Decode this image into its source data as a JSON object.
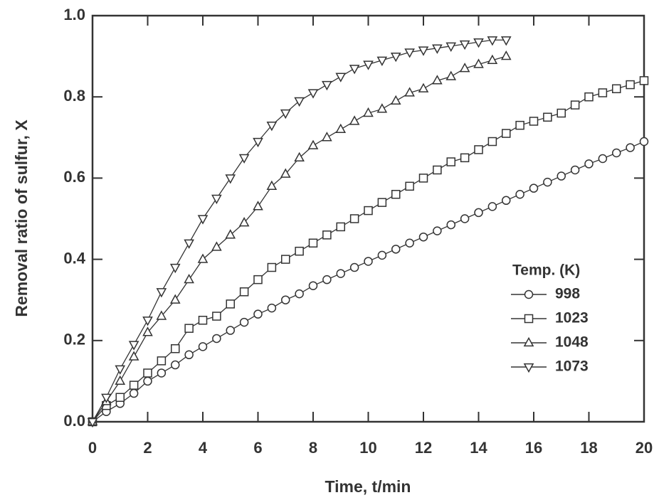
{
  "chart_data": {
    "type": "line",
    "xlabel": "Time, t/min",
    "ylabel": "Removal ratio of sulfur, X",
    "legend_title": "Temp. (K)",
    "legend_position": "lower right",
    "xlim": [
      0,
      20
    ],
    "xticks": [
      0,
      2,
      4,
      6,
      8,
      10,
      12,
      14,
      16,
      18,
      20
    ],
    "ylim": [
      0,
      1
    ],
    "yticks": [
      {
        "value": 0,
        "label": "0.0"
      },
      0.2,
      0.4,
      0.6,
      0.8,
      {
        "value": 1,
        "label": "1.0"
      }
    ],
    "x": [
      0,
      0.5,
      1,
      1.5,
      2,
      2.5,
      3,
      3.5,
      4,
      4.5,
      5,
      5.5,
      6,
      6.5,
      7,
      7.5,
      8,
      8.5,
      9,
      9.5,
      10,
      10.5,
      11,
      11.5,
      12,
      12.5,
      13,
      13.5,
      14,
      14.5,
      15,
      15.5,
      16,
      16.5,
      17,
      17.5,
      18,
      18.5,
      19,
      19.5,
      20
    ],
    "series": [
      {
        "name": "998",
        "color": "#333333",
        "marker": "circle",
        "values": [
          0,
          0.025,
          0.045,
          0.07,
          0.1,
          0.12,
          0.14,
          0.165,
          0.185,
          0.205,
          0.225,
          0.245,
          0.265,
          0.28,
          0.3,
          0.315,
          0.335,
          0.35,
          0.365,
          0.38,
          0.395,
          0.41,
          0.425,
          0.44,
          0.455,
          0.47,
          0.485,
          0.5,
          0.515,
          0.53,
          0.545,
          0.56,
          0.575,
          0.59,
          0.605,
          0.62,
          0.635,
          0.648,
          0.662,
          0.675,
          0.69
        ]
      },
      {
        "name": "1023",
        "color": "#333333",
        "marker": "square",
        "values": [
          0,
          0.04,
          0.06,
          0.09,
          0.12,
          0.15,
          0.18,
          0.23,
          0.25,
          0.26,
          0.29,
          0.32,
          0.35,
          0.38,
          0.4,
          0.42,
          0.44,
          0.46,
          0.48,
          0.5,
          0.52,
          0.54,
          0.56,
          0.58,
          0.6,
          0.62,
          0.64,
          0.65,
          0.67,
          0.69,
          0.71,
          0.73,
          0.74,
          0.75,
          0.76,
          0.78,
          0.8,
          0.81,
          0.82,
          0.83,
          0.84
        ]
      },
      {
        "name": "1048",
        "color": "#333333",
        "marker": "triangle-up",
        "values": [
          0,
          0.05,
          0.1,
          0.16,
          0.22,
          0.26,
          0.3,
          0.35,
          0.4,
          0.43,
          0.46,
          0.49,
          0.53,
          0.58,
          0.61,
          0.65,
          0.68,
          0.7,
          0.72,
          0.74,
          0.76,
          0.77,
          0.79,
          0.81,
          0.82,
          0.84,
          0.85,
          0.87,
          0.88,
          0.89,
          0.9,
          null,
          null,
          null,
          null,
          null,
          null,
          null,
          null,
          null,
          null
        ]
      },
      {
        "name": "1073",
        "color": "#333333",
        "marker": "triangle-down",
        "values": [
          0,
          0.06,
          0.13,
          0.19,
          0.25,
          0.32,
          0.38,
          0.44,
          0.5,
          0.55,
          0.6,
          0.65,
          0.69,
          0.73,
          0.76,
          0.79,
          0.81,
          0.83,
          0.85,
          0.87,
          0.88,
          0.89,
          0.9,
          0.91,
          0.915,
          0.92,
          0.925,
          0.93,
          0.935,
          0.94,
          0.94,
          null,
          null,
          null,
          null,
          null,
          null,
          null,
          null,
          null,
          null
        ]
      }
    ]
  }
}
